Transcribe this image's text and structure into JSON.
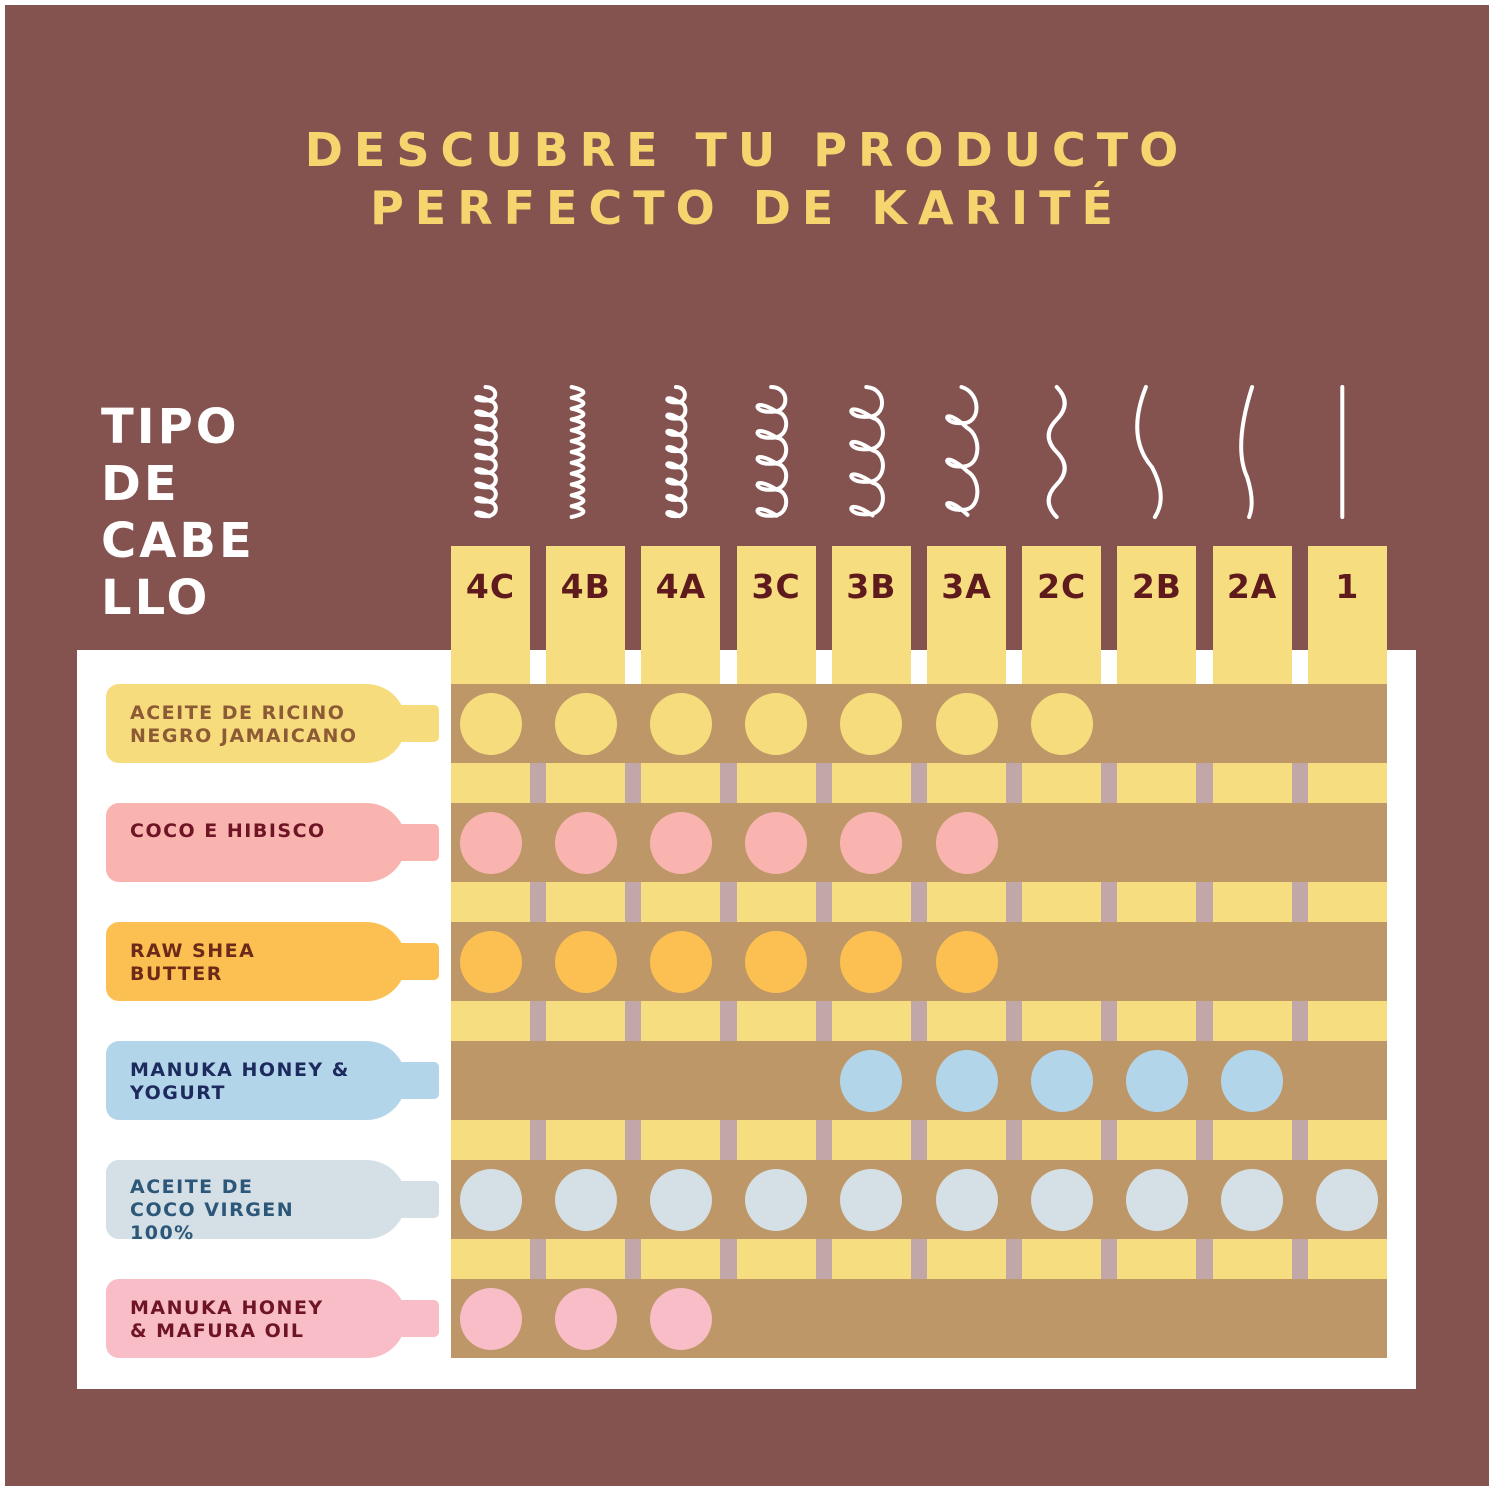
{
  "title": {
    "line1": "DESCUBRE TU PRODUCTO",
    "line2": "PERFECTO DE KARITÉ"
  },
  "hair_label": [
    "TIPO",
    "DE",
    "CABE",
    "LLO"
  ],
  "hair_types": [
    "4C",
    "4B",
    "4A",
    "3C",
    "3B",
    "3A",
    "2C",
    "2B",
    "2A",
    "1"
  ],
  "hair_icons": [
    "tight-coil-icon",
    "zigzag-coil-icon",
    "coil-icon",
    "large-coil-icon",
    "loose-curl-icon",
    "wide-curl-icon",
    "deep-wave-icon",
    "wave-icon",
    "slight-wave-icon",
    "straight-line-icon"
  ],
  "products": [
    {
      "name": [
        "ACEITE DE RICINO",
        "NEGRO JAMAICANO"
      ],
      "color": "#f6dc7c",
      "text_color": "#8c5a34",
      "suitable": [
        "4C",
        "4B",
        "4A",
        "3C",
        "3B",
        "3A",
        "2C"
      ]
    },
    {
      "name": [
        "COCO E HIBISCO"
      ],
      "color": "#f9b4b0",
      "text_color": "#6e1424",
      "suitable": [
        "4C",
        "4B",
        "4A",
        "3C",
        "3B",
        "3A"
      ]
    },
    {
      "name": [
        "RAW SHEA",
        "BUTTER"
      ],
      "color": "#fbc051",
      "text_color": "#6e2a18",
      "suitable": [
        "4C",
        "4B",
        "4A",
        "3C",
        "3B",
        "3A"
      ]
    },
    {
      "name": [
        "MANUKA HONEY &",
        "YOGURT"
      ],
      "color": "#b3d5ea",
      "text_color": "#1c2a5e",
      "suitable": [
        "3B",
        "3A",
        "2C",
        "2B",
        "2A"
      ]
    },
    {
      "name": [
        "ACEITE DE",
        "COCO VIRGEN",
        "100%"
      ],
      "color": "#d4dfe6",
      "text_color": "#2d5779",
      "suitable": [
        "4C",
        "4B",
        "4A",
        "3C",
        "3B",
        "3A",
        "2C",
        "2B",
        "2A",
        "1"
      ]
    },
    {
      "name": [
        "MANUKA HONEY",
        "& MAFURA OIL"
      ],
      "color": "#f8bdc7",
      "text_color": "#6e1424",
      "suitable": [
        "4C",
        "4B",
        "4A"
      ]
    }
  ],
  "colors": {
    "background": "#845350",
    "title": "#f5d56e",
    "column": "#f6de80",
    "row_band": "#bd9767",
    "column_label": "#5e1a1c"
  }
}
